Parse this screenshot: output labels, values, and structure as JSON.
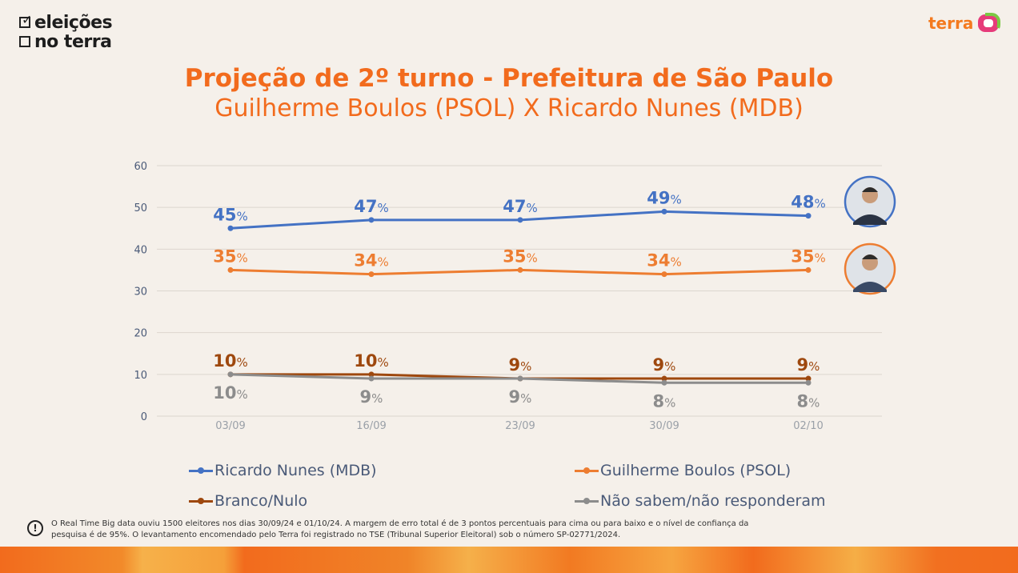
{
  "branding": {
    "left_logo_line1": "eleições",
    "left_logo_line2": "no terra",
    "right_logo": "terra"
  },
  "footnote": "O Real Time Big data ouviu 1500 eleitores nos dias 30/09/24 e 01/10/24. A margem de erro total é de 3 pontos percentuais para cima ou para baixo e o nível de confiança da pesquisa é de 95%. O levantamento encomendado pelo Terra foi registrado no TSE (Tribunal Superior Eleitoral) sob o número SP-02771/2024.",
  "chart_data": {
    "type": "line",
    "title": "Projeção de 2º turno - Prefeitura de São Paulo",
    "subtitle": "Guilherme Boulos (PSOL) X Ricardo Nunes (MDB)",
    "categories": [
      "03/09",
      "16/09",
      "23/09",
      "30/09",
      "02/10"
    ],
    "ylim": [
      0,
      60
    ],
    "yticks": [
      0,
      10,
      20,
      30,
      40,
      50,
      60
    ],
    "grid": true,
    "legend_position": "bottom",
    "value_suffix": "%",
    "series": [
      {
        "name": "Ricardo Nunes (MDB)",
        "values": [
          45,
          47,
          47,
          49,
          48
        ],
        "color": "#4472c4",
        "label_position": "above"
      },
      {
        "name": "Guilherme Boulos (PSOL)",
        "values": [
          35,
          34,
          35,
          34,
          35
        ],
        "color": "#ed7d31",
        "label_position": "above"
      },
      {
        "name": "Branco/Nulo",
        "values": [
          10,
          10,
          9,
          9,
          9
        ],
        "color": "#9e480e",
        "label_position": "above"
      },
      {
        "name": "Não sabem/não responderam",
        "values": [
          10,
          9,
          9,
          8,
          8
        ],
        "color": "#8c8c8c",
        "label_position": "below"
      }
    ]
  }
}
